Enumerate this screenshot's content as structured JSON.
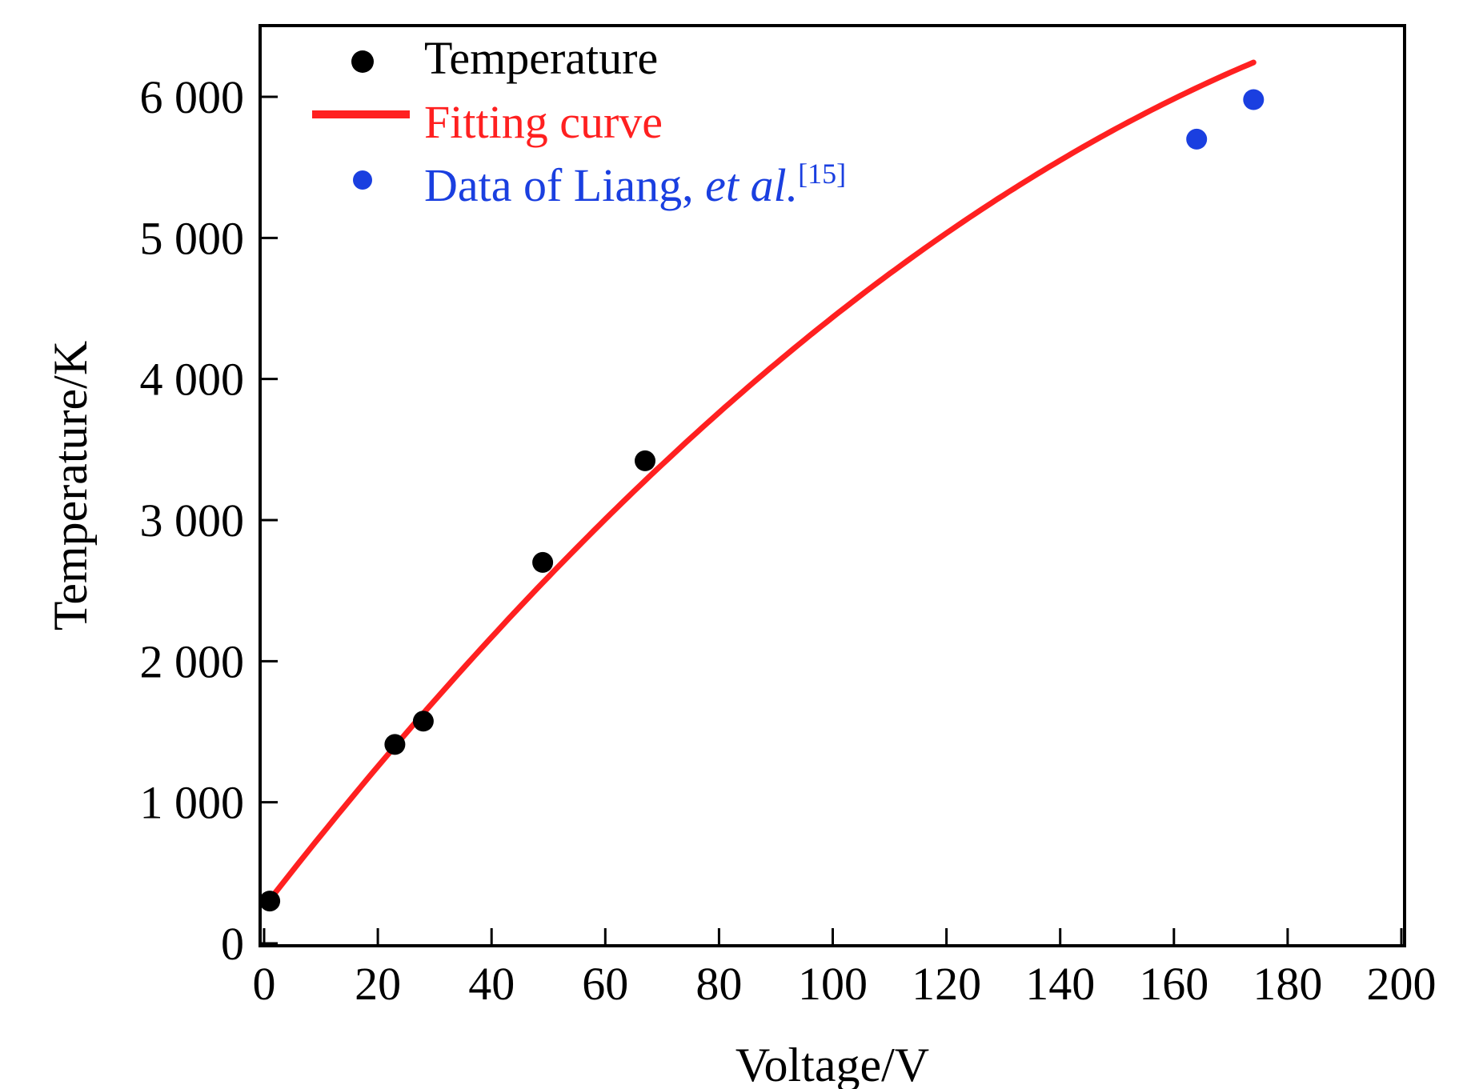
{
  "chart_data": {
    "type": "scatter",
    "xlabel": "Voltage/V",
    "ylabel": "Temperature/K",
    "xlim": [
      0,
      200
    ],
    "ylim": [
      0,
      6500
    ],
    "x_ticks": [
      0,
      20,
      40,
      60,
      80,
      100,
      120,
      140,
      160,
      180,
      200
    ],
    "x_tick_labels": [
      "0",
      "20",
      "40",
      "60",
      "80",
      "100",
      "120",
      "140",
      "160",
      "180",
      "200"
    ],
    "y_ticks": [
      0,
      1000,
      2000,
      3000,
      4000,
      5000,
      6000
    ],
    "y_tick_labels": [
      "0",
      "1 000",
      "2 000",
      "3 000",
      "4 000",
      "5 000",
      "6 000"
    ],
    "grid": false,
    "legend_position": "top-left",
    "series": [
      {
        "name": "Temperature",
        "kind": "scatter",
        "color": "#000000",
        "points": [
          {
            "x": 1,
            "y": 300
          },
          {
            "x": 23,
            "y": 1410
          },
          {
            "x": 28,
            "y": 1575
          },
          {
            "x": 49,
            "y": 2700
          },
          {
            "x": 67,
            "y": 3420
          }
        ]
      },
      {
        "name": "Fitting curve",
        "kind": "line",
        "color": "#ff2020",
        "x_range": [
          1,
          174
        ],
        "fit": {
          "a": -0.1,
          "b": 51.8,
          "c": 258
        }
      },
      {
        "name": "Data of Liang, ",
        "name_italic": "et al.",
        "name_superscript": "[15]",
        "kind": "scatter",
        "color": "#1a3fe0",
        "points": [
          {
            "x": 164,
            "y": 5700
          },
          {
            "x": 174,
            "y": 5980
          }
        ]
      }
    ]
  }
}
